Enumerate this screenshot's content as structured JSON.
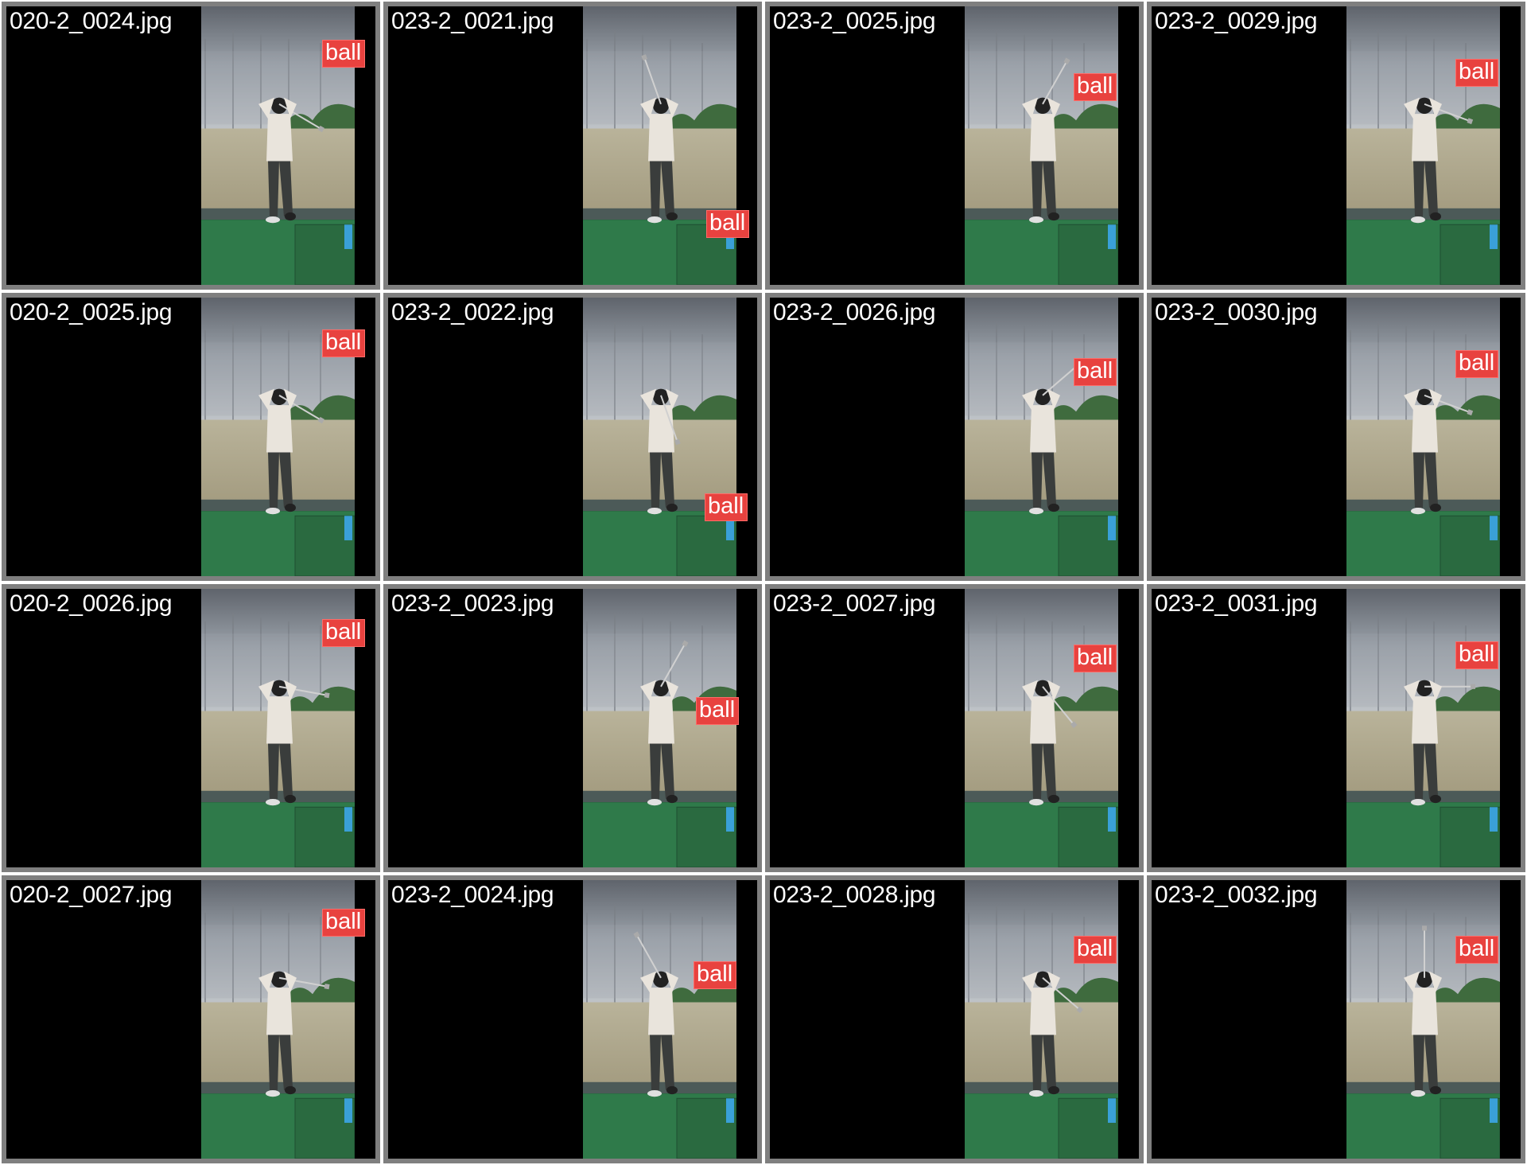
{
  "tiles": [
    {
      "filename": "020-2_0024.jpg",
      "label": "ball"
    },
    {
      "filename": "023-2_0021.jpg",
      "label": "ball"
    },
    {
      "filename": "023-2_0025.jpg",
      "label": "ball"
    },
    {
      "filename": "023-2_0029.jpg",
      "label": "ball"
    },
    {
      "filename": "020-2_0025.jpg",
      "label": "ball"
    },
    {
      "filename": "023-2_0022.jpg",
      "label": "ball"
    },
    {
      "filename": "023-2_0026.jpg",
      "label": "ball"
    },
    {
      "filename": "023-2_0030.jpg",
      "label": "ball"
    },
    {
      "filename": "020-2_0026.jpg",
      "label": "ball"
    },
    {
      "filename": "023-2_0023.jpg",
      "label": "ball"
    },
    {
      "filename": "023-2_0027.jpg",
      "label": "ball"
    },
    {
      "filename": "023-2_0031.jpg",
      "label": "ball"
    },
    {
      "filename": "020-2_0027.jpg",
      "label": "ball"
    },
    {
      "filename": "023-2_0024.jpg",
      "label": "ball"
    },
    {
      "filename": "023-2_0028.jpg",
      "label": "ball"
    },
    {
      "filename": "023-2_0032.jpg",
      "label": "ball"
    }
  ],
  "colors": {
    "tile_border": "#7f7f7f",
    "label_bg": "#e8423f",
    "label_text": "#ffffff",
    "filename_text": "#ffffff"
  }
}
